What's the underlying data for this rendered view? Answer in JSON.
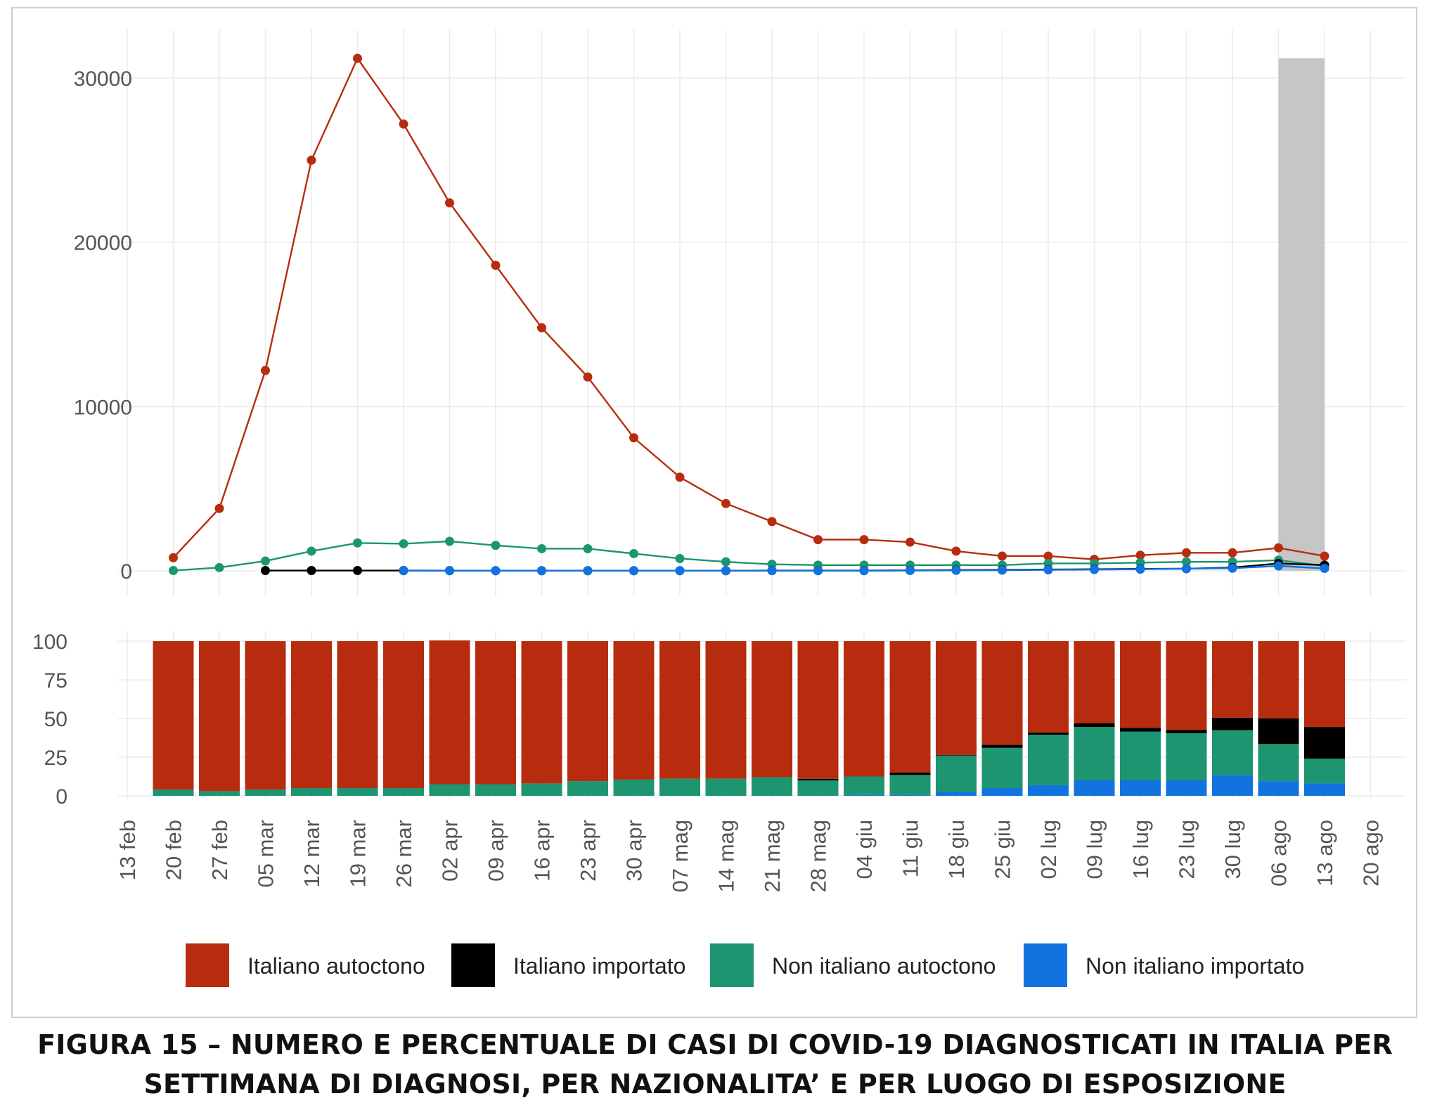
{
  "caption": {
    "line1": "FIGURA 15 – NUMERO E PERCENTUALE DI CASI DI COVID-19 DIAGNOSTICATI IN ITALIA PER",
    "line2": "SETTIMANA DI DIAGNOSI, PER NAZIONALITA’ E PER LUOGO DI ESPOSIZIONE"
  },
  "chart_data": [
    {
      "type": "line",
      "x": [
        "20 feb",
        "27 feb",
        "05 mar",
        "12 mar",
        "19 mar",
        "26 mar",
        "02 apr",
        "09 apr",
        "16 apr",
        "23 apr",
        "30 apr",
        "07 mag",
        "14 mag",
        "21 mag",
        "28 mag",
        "04 giu",
        "11 giu",
        "18 giu",
        "25 giu",
        "02 lug",
        "09 lug",
        "16 lug",
        "23 lug",
        "30 lug",
        "06 ago",
        "13 ago"
      ],
      "x_ticks": [
        "13 feb",
        "20 feb",
        "27 feb",
        "05 mar",
        "12 mar",
        "19 mar",
        "26 mar",
        "02 apr",
        "09 apr",
        "16 apr",
        "23 apr",
        "30 apr",
        "07 mag",
        "14 mag",
        "21 mag",
        "28 mag",
        "04 giu",
        "11 giu",
        "18 giu",
        "25 giu",
        "02 lug",
        "09 lug",
        "16 lug",
        "23 lug",
        "30 lug",
        "06 ago",
        "13 ago",
        "20 ago"
      ],
      "y_ticks": [
        0,
        10000,
        20000,
        30000
      ],
      "ylim": [
        0,
        33000
      ],
      "grid": true,
      "highlight_band": {
        "from": "06 ago",
        "to": "13 ago",
        "color": "#c6c6c6"
      },
      "series": [
        {
          "name": "Italiano autoctono",
          "color": "#b72c0f",
          "values": [
            800,
            3800,
            12200,
            25000,
            31200,
            27200,
            22400,
            18600,
            14800,
            11800,
            8100,
            5700,
            4100,
            3000,
            1900,
            1900,
            1750,
            1200,
            900,
            900,
            700,
            950,
            1100,
            1100,
            1400,
            900
          ]
        },
        {
          "name": "Italiano importato",
          "color": "#000000",
          "values": [
            null,
            null,
            20,
            20,
            20,
            20,
            15,
            10,
            10,
            10,
            10,
            10,
            10,
            20,
            20,
            20,
            30,
            50,
            60,
            80,
            100,
            120,
            130,
            200,
            450,
            350
          ]
        },
        {
          "name": "Non italiano autoctono",
          "color": "#1c9570",
          "values": [
            20,
            200,
            600,
            1200,
            1700,
            1650,
            1800,
            1550,
            1350,
            1350,
            1050,
            750,
            550,
            400,
            350,
            350,
            350,
            350,
            350,
            450,
            450,
            500,
            550,
            550,
            650,
            300
          ]
        },
        {
          "name": "Non italiano importato",
          "color": "#1273de",
          "values": [
            null,
            null,
            null,
            null,
            null,
            10,
            10,
            10,
            10,
            10,
            10,
            10,
            10,
            10,
            10,
            10,
            20,
            30,
            40,
            60,
            80,
            100,
            130,
            160,
            300,
            150
          ]
        }
      ]
    },
    {
      "type": "bar",
      "stacked": true,
      "categories": [
        "20 feb",
        "27 feb",
        "05 mar",
        "12 mar",
        "19 mar",
        "26 mar",
        "02 apr",
        "09 apr",
        "16 apr",
        "23 apr",
        "30 apr",
        "07 mag",
        "14 mag",
        "21 mag",
        "28 mag",
        "04 giu",
        "11 giu",
        "18 giu",
        "25 giu",
        "02 lug",
        "09 lug",
        "16 lug",
        "23 lug",
        "30 lug",
        "06 ago",
        "13 ago"
      ],
      "y_ticks": [
        0,
        25,
        50,
        75,
        100
      ],
      "ylim": [
        0,
        100
      ],
      "series": [
        {
          "name": "Non italiano importato",
          "color": "#1273de",
          "values": [
            0,
            0,
            0,
            0,
            0,
            0,
            0,
            0,
            0,
            0,
            0,
            0,
            0,
            0,
            0,
            0.5,
            0.5,
            2.5,
            5,
            7,
            10,
            10,
            10,
            13.5,
            9.5,
            8
          ]
        },
        {
          "name": "Non italiano autoctono",
          "color": "#1c9570",
          "values": [
            4,
            3,
            4,
            5,
            5,
            5,
            7.5,
            7.5,
            8,
            9.5,
            10.5,
            11,
            11,
            12,
            10,
            12,
            13,
            23.5,
            26,
            32.5,
            34.5,
            31.5,
            30.5,
            29,
            24,
            16
          ]
        },
        {
          "name": "Italiano importato",
          "color": "#000000",
          "values": [
            0,
            0,
            0,
            0,
            0,
            0,
            0,
            0,
            0,
            0,
            0,
            0,
            0,
            0,
            1,
            0,
            1.5,
            0.5,
            2,
            1.5,
            2.5,
            2.5,
            2,
            8,
            16.5,
            20.5
          ]
        },
        {
          "name": "Italiano autoctono",
          "color": "#b72c0f",
          "values": [
            96,
            97,
            96,
            95,
            95,
            95,
            93,
            92.5,
            92,
            90.5,
            89.5,
            89,
            89,
            88,
            89,
            87.5,
            85,
            73.5,
            67,
            59,
            53,
            56,
            57.5,
            49.5,
            50,
            55.5
          ]
        }
      ]
    }
  ],
  "legend": [
    {
      "label": "Italiano autoctono",
      "color": "#b72c0f"
    },
    {
      "label": "Italiano importato",
      "color": "#000000"
    },
    {
      "label": "Non italiano autoctono",
      "color": "#1c9570"
    },
    {
      "label": "Non italiano importato",
      "color": "#1273de"
    }
  ]
}
